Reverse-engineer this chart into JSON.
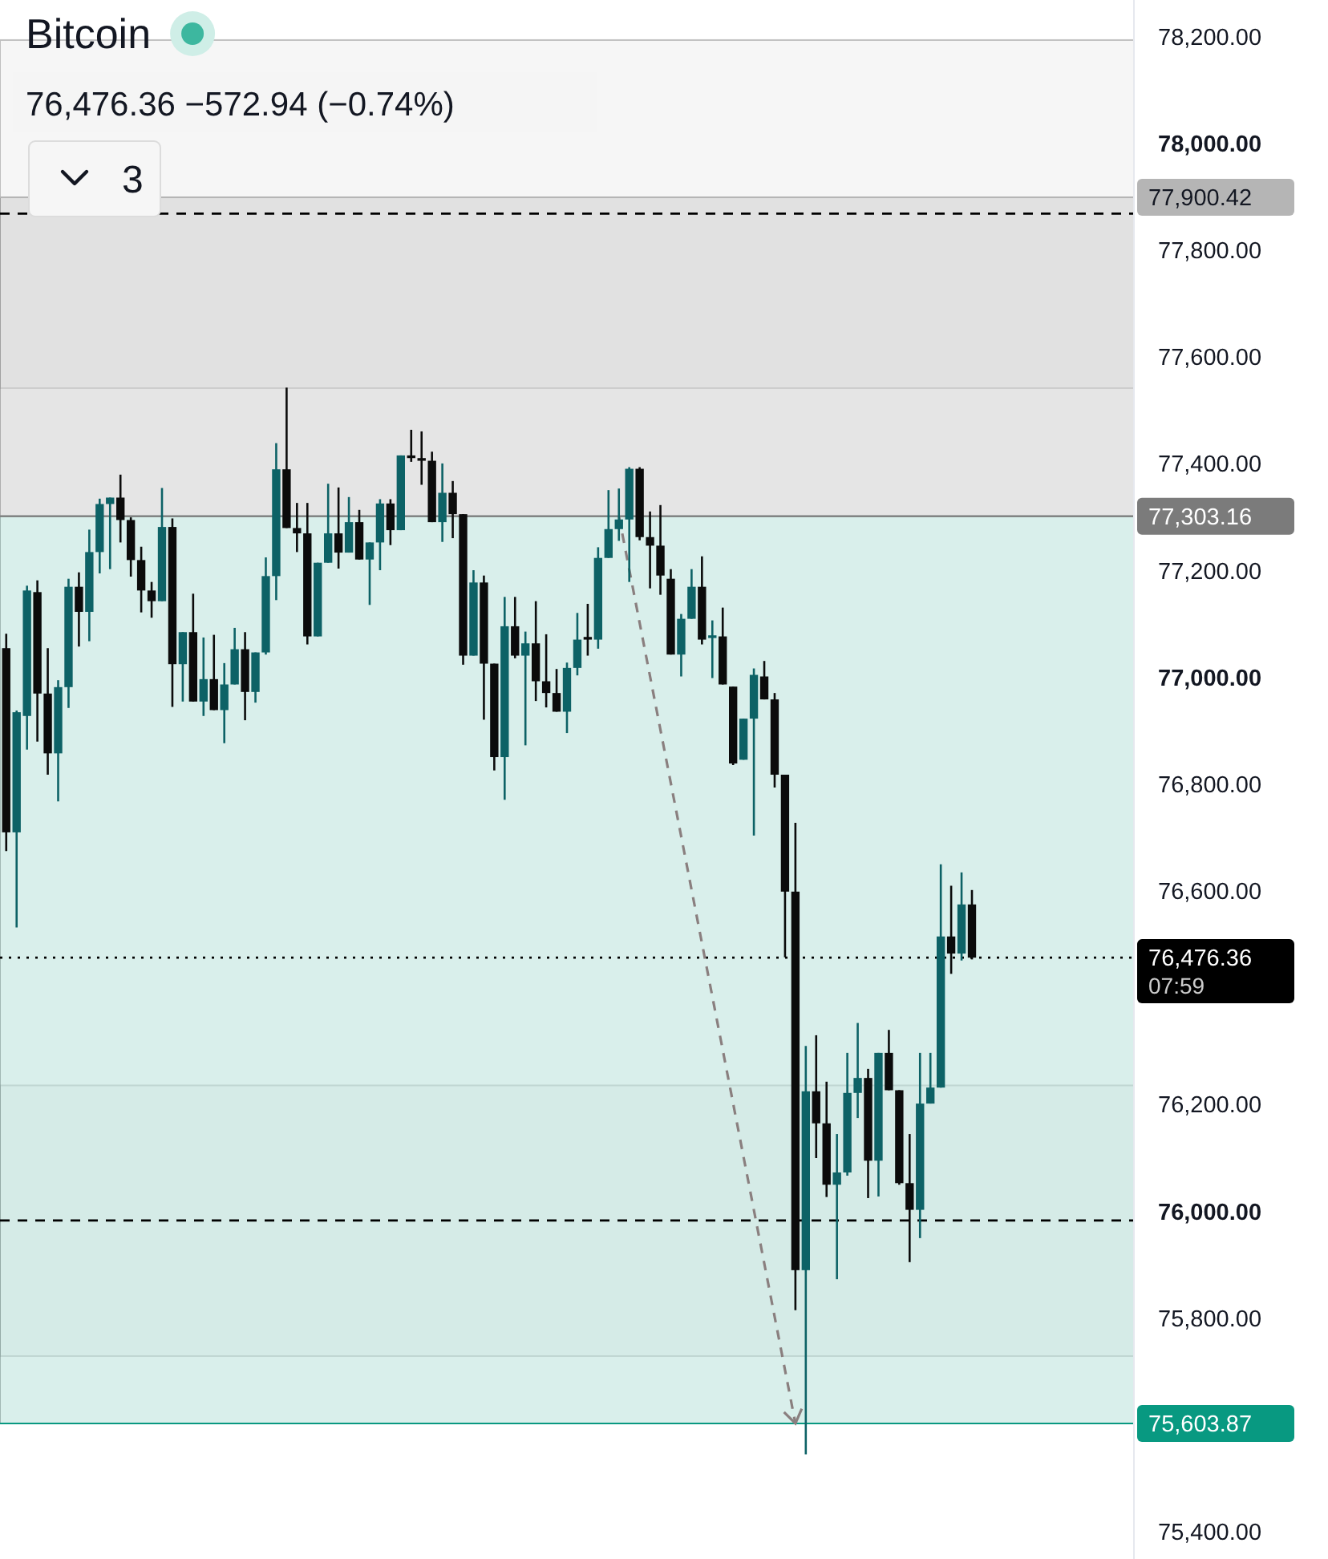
{
  "chart_data": {
    "type": "candlestick",
    "title": "Bitcoin",
    "subtitle": "76,476.36 −572.94 (−0.74%)",
    "categories": [
      null,
      null,
      null,
      null,
      null,
      null,
      null,
      null,
      null,
      null,
      null,
      null,
      null,
      null,
      null,
      null,
      null,
      null,
      null,
      null,
      null,
      null,
      null,
      null,
      null,
      null,
      null,
      null,
      null,
      null,
      null,
      null,
      null,
      null,
      null,
      null,
      null,
      null,
      null,
      null,
      null,
      null,
      null,
      null,
      null,
      null,
      null,
      null,
      null,
      null,
      null,
      null,
      null,
      null,
      null,
      null,
      null,
      null,
      null,
      null,
      null,
      null,
      null,
      null,
      null,
      null,
      null,
      null,
      null,
      null,
      null,
      null,
      null,
      null,
      null,
      null,
      null,
      null,
      null,
      null,
      null,
      null,
      null,
      null,
      null,
      null,
      null,
      null,
      null,
      null,
      null,
      null,
      null,
      null,
      null,
      null,
      null,
      null,
      null,
      null,
      null,
      null,
      null,
      null,
      null,
      null,
      null,
      null,
      null
    ],
    "ohlc": [
      [
        77056,
        77083,
        76676,
        76711
      ],
      [
        76711,
        76939,
        76533,
        76936
      ],
      [
        76929,
        77173,
        76866,
        77164
      ],
      [
        77161,
        77183,
        76881,
        76971
      ],
      [
        76971,
        77056,
        76819,
        76859
      ],
      [
        76859,
        76996,
        76769,
        76983
      ],
      [
        76983,
        77186,
        76944,
        77171
      ],
      [
        77171,
        77198,
        77059,
        77124
      ],
      [
        77124,
        77278,
        77069,
        77236
      ],
      [
        77236,
        77336,
        77196,
        77326
      ],
      [
        77326,
        77338,
        77204,
        77338
      ],
      [
        77338,
        77381,
        77254,
        77296
      ],
      [
        77296,
        77301,
        77190,
        77221
      ],
      [
        77221,
        77246,
        77123,
        77164
      ],
      [
        77164,
        77180,
        77113,
        77144
      ],
      [
        77144,
        77356,
        77144,
        77283
      ],
      [
        77283,
        77299,
        76946,
        77026
      ],
      [
        77026,
        77086,
        76956,
        77086
      ],
      [
        77086,
        77158,
        76956,
        76956
      ],
      [
        76956,
        77076,
        76929,
        76998
      ],
      [
        76998,
        77081,
        76940,
        76940
      ],
      [
        76940,
        77028,
        76878,
        76988
      ],
      [
        76988,
        77094,
        76988,
        77054
      ],
      [
        77054,
        77086,
        76921,
        76974
      ],
      [
        76974,
        77048,
        76954,
        77048
      ],
      [
        77048,
        77226,
        77044,
        77191
      ],
      [
        77191,
        77440,
        77146,
        77391
      ],
      [
        77391,
        77544,
        77281,
        77281
      ],
      [
        77281,
        77328,
        77236,
        77271
      ],
      [
        77271,
        77328,
        77063,
        77078
      ],
      [
        77078,
        77216,
        77078,
        77216
      ],
      [
        77216,
        77364,
        77216,
        77271
      ],
      [
        77271,
        77357,
        77205,
        77235
      ],
      [
        77235,
        77339,
        77235,
        77292
      ],
      [
        77292,
        77315,
        77222,
        77222
      ],
      [
        77222,
        77254,
        77137,
        77254
      ],
      [
        77254,
        77335,
        77202,
        77327
      ],
      [
        77327,
        77335,
        77249,
        77277
      ],
      [
        77277,
        77417,
        77277,
        77417
      ],
      [
        77417,
        77465,
        77405,
        77412
      ],
      [
        77412,
        77462,
        77362,
        77407
      ],
      [
        77407,
        77424,
        77292,
        77292
      ],
      [
        77292,
        77402,
        77255,
        77347
      ],
      [
        77347,
        77369,
        77262,
        77307
      ],
      [
        77307,
        77307,
        77025,
        77042
      ],
      [
        77042,
        77202,
        77042,
        77179
      ],
      [
        77179,
        77192,
        76922,
        77027
      ],
      [
        77027,
        77027,
        76827,
        76852
      ],
      [
        76852,
        77152,
        76772,
        77097
      ],
      [
        77097,
        77152,
        77037,
        77042
      ],
      [
        77042,
        77087,
        76874,
        77065
      ],
      [
        77065,
        77144,
        76957,
        76994
      ],
      [
        76994,
        77082,
        76945,
        76972
      ],
      [
        76972,
        77017,
        76937,
        76937
      ],
      [
        76937,
        77029,
        76897,
        77019
      ],
      [
        77019,
        77122,
        77005,
        77072
      ],
      [
        77077,
        77139,
        77042,
        77072
      ],
      [
        77072,
        77245,
        77055,
        77225
      ],
      [
        77225,
        77352,
        77225,
        77279
      ],
      [
        77279,
        77355,
        77257,
        77297
      ],
      [
        77297,
        77395,
        77180,
        77392
      ],
      [
        77392,
        77395,
        77258,
        77264
      ],
      [
        77264,
        77312,
        77168,
        77248
      ],
      [
        77248,
        77324,
        77156,
        77192
      ],
      [
        77186,
        77204,
        77044,
        77044
      ],
      [
        77044,
        77120,
        77003,
        77111
      ],
      [
        77111,
        77204,
        77111,
        77171
      ],
      [
        77171,
        77228,
        77063,
        77072
      ],
      [
        77075,
        77108,
        77000,
        77080
      ],
      [
        77078,
        77132,
        76988,
        76988
      ],
      [
        76984,
        76984,
        76837,
        76840
      ],
      [
        76847,
        76924,
        76847,
        76924
      ],
      [
        76924,
        77018,
        76705,
        77006
      ],
      [
        77003,
        77032,
        76960,
        76960
      ],
      [
        76960,
        76972,
        76795,
        76819
      ],
      [
        76819,
        76819,
        76477,
        76600
      ],
      [
        76600,
        76729,
        75816,
        75891
      ],
      [
        75891,
        76311,
        75546,
        76226
      ],
      [
        76226,
        76331,
        76101,
        76166
      ],
      [
        76166,
        76244,
        76028,
        76051
      ],
      [
        76051,
        76146,
        75874,
        76074
      ],
      [
        76074,
        76298,
        76068,
        76223
      ],
      [
        76223,
        76354,
        76176,
        76251
      ],
      [
        76251,
        76268,
        76026,
        76096
      ],
      [
        76096,
        76298,
        76029,
        76298
      ],
      [
        76298,
        76341,
        76228,
        76228
      ],
      [
        76228,
        76228,
        76051,
        76054
      ],
      [
        76054,
        76146,
        75906,
        76004
      ],
      [
        76004,
        76298,
        75951,
        76203
      ],
      [
        76203,
        76298,
        76203,
        76233
      ],
      [
        76233,
        76651,
        76233,
        76516
      ],
      [
        76516,
        76611,
        76446,
        76484
      ],
      [
        76484,
        76636,
        76471,
        76576
      ],
      [
        76576,
        76603,
        76473,
        76476.36
      ],
      null,
      null,
      null,
      null,
      null,
      null,
      null,
      null,
      null,
      null,
      null,
      null,
      null,
      null,
      null
    ],
    "colors": [
      "#0b0b0b",
      "#0d6266",
      "#0d6266",
      "#0b0b0b",
      "#0b0b0b",
      "#0d6266",
      "#0d6266",
      "#0b0b0b",
      "#0d6266",
      "#0d6266",
      "#0d6266",
      "#0b0b0b",
      "#0b0b0b",
      "#0b0b0b",
      "#0b0b0b",
      "#0d6266",
      "#0b0b0b",
      "#0d6266",
      "#0b0b0b",
      "#0d6266",
      "#0b0b0b",
      "#0d6266",
      "#0d6266",
      "#0b0b0b",
      "#0d6266",
      "#0d6266",
      "#0d6266",
      "#0b0b0b",
      "#0b0b0b",
      "#0b0b0b",
      "#0d6266",
      "#0d6266",
      "#0b0b0b",
      "#0d6266",
      "#0b0b0b",
      "#0d6266",
      "#0d6266",
      "#0b0b0b",
      "#0d6266",
      "#0b0b0b",
      "#0b0b0b",
      "#0b0b0b",
      "#0d6266",
      "#0b0b0b",
      "#0b0b0b",
      "#0d6266",
      "#0b0b0b",
      "#0b0b0b",
      "#0d6266",
      "#0b0b0b",
      "#0d6266",
      "#0b0b0b",
      "#0b0b0b",
      "#0b0b0b",
      "#0d6266",
      "#0d6266",
      "#0b0b0b",
      "#0d6266",
      "#0d6266",
      "#0d6266",
      "#0d6266",
      "#0b0b0b",
      "#0b0b0b",
      "#0b0b0b",
      "#0b0b0b",
      "#0d6266",
      "#0d6266",
      "#0b0b0b",
      "#0d6266",
      "#0b0b0b",
      "#0b0b0b",
      "#0d6266",
      "#0d6266",
      "#0b0b0b",
      "#0b0b0b",
      "#0b0b0b",
      "#0b0b0b",
      "#0d6266",
      "#0b0b0b",
      "#0b0b0b",
      "#0d6266",
      "#0d6266",
      "#0d6266",
      "#0b0b0b",
      "#0d6266",
      "#0b0b0b",
      "#0b0b0b",
      "#0b0b0b",
      "#0d6266",
      "#0d6266",
      "#0d6266",
      "#0b0b0b",
      "#0d6266",
      "#0b0b0b",
      null,
      null,
      null,
      null,
      null,
      null,
      null,
      null,
      null,
      null,
      null,
      null,
      null,
      null,
      null
    ],
    "ylim": [
      75350,
      78270
    ],
    "yticks": [
      {
        "value": 75400,
        "label": "75,400.00"
      },
      {
        "value": 75800,
        "label": "75,800.00"
      },
      {
        "value": 76000,
        "label": "76,000.00"
      },
      {
        "value": 76200,
        "label": "76,200.00"
      },
      {
        "value": 76600,
        "label": "76,600.00"
      },
      {
        "value": 76800,
        "label": "76,800.00"
      },
      {
        "value": 77000,
        "label": "77,000.00"
      },
      {
        "value": 77200,
        "label": "77,200.00"
      },
      {
        "value": 77400,
        "label": "77,400.00"
      },
      {
        "value": 77600,
        "label": "77,600.00"
      },
      {
        "value": 77800,
        "label": "77,800.00"
      },
      {
        "value": 78000,
        "label": "78,000.00"
      },
      {
        "value": 78200,
        "label": "78,200.00"
      }
    ],
    "tick_labels": "y",
    "bands": [
      {
        "axis": "y",
        "from": 77543,
        "to": 78195,
        "color": "#f0f0f0"
      },
      {
        "axis": "y",
        "from": 75730,
        "to": 76237,
        "color": "#f0f0f0"
      },
      {
        "axis": "y",
        "from": 77303.16,
        "to": 77900.42,
        "color": "#d4d4d4"
      },
      {
        "axis": "y",
        "from": 75603.87,
        "to": 77303.16,
        "color": "#bfe5de"
      }
    ],
    "ref_lines": [
      {
        "axis": "y",
        "value": 77900.42,
        "label": "77,900.42",
        "color": "#b5b5b5"
      },
      {
        "axis": "y",
        "value": 77303.16,
        "label": "77,303.16",
        "color": "#7b7b7b"
      },
      {
        "axis": "y",
        "value": 75603.87,
        "label": "75,603.87",
        "color": "#089981"
      },
      {
        "axis": "y",
        "value": 76476.36,
        "label": "76,476.36",
        "color": "#000000",
        "line_style": "dotted"
      },
      {
        "axis": "y",
        "value": 77870,
        "color": "#000000",
        "line_style": "dashed"
      },
      {
        "axis": "y",
        "value": 75984,
        "color": "#000000",
        "line_style": "dashed"
      }
    ],
    "annotations": [
      "3",
      "07:59"
    ]
  }
}
